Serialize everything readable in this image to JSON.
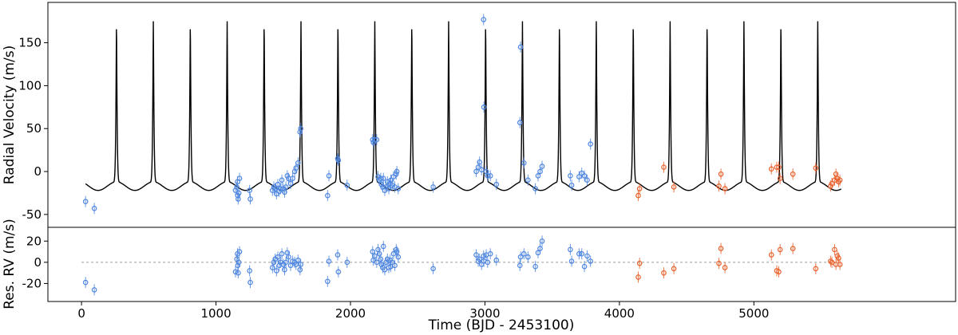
{
  "chart_data": [
    {
      "type": "line",
      "panel": "top",
      "ylabel": "Radial Velocity (m/s)",
      "xlim": [
        -250,
        6500
      ],
      "ylim": [
        -65,
        197
      ],
      "yticks": [
        -50,
        0,
        50,
        100,
        150
      ],
      "model": {
        "period": 274.5,
        "peak_times": [
          260,
          534,
          809,
          1083,
          1358,
          1632,
          1907,
          2181,
          2456,
          2730,
          3005,
          3279,
          3554,
          3828,
          4103,
          4377,
          4652,
          4926,
          5201,
          5475
        ],
        "peak_value": 175,
        "trough_value": -17,
        "x_range": [
          30,
          5650
        ]
      },
      "series": [
        {
          "instrument_color": "#4f87e0",
          "points": [
            [
              30,
              -35
            ],
            [
              95,
              -43
            ],
            [
              1145,
              -22
            ],
            [
              1155,
              -18
            ],
            [
              1160,
              -12
            ],
            [
              1162,
              -28
            ],
            [
              1165,
              -32
            ],
            [
              1170,
              -25
            ],
            [
              1175,
              -8
            ],
            [
              1250,
              -22
            ],
            [
              1255,
              -32
            ],
            [
              1420,
              -22
            ],
            [
              1430,
              -18
            ],
            [
              1440,
              -20
            ],
            [
              1450,
              -26
            ],
            [
              1460,
              -15
            ],
            [
              1470,
              -23
            ],
            [
              1480,
              -20
            ],
            [
              1490,
              -10
            ],
            [
              1500,
              -20
            ],
            [
              1510,
              -24
            ],
            [
              1520,
              -18
            ],
            [
              1530,
              -5
            ],
            [
              1540,
              -8
            ],
            [
              1555,
              -14
            ],
            [
              1570,
              -8
            ],
            [
              1585,
              0
            ],
            [
              1595,
              4
            ],
            [
              1610,
              10
            ],
            [
              1625,
              46
            ],
            [
              1630,
              50
            ],
            [
              1830,
              -28
            ],
            [
              1840,
              -5
            ],
            [
              1905,
              15
            ],
            [
              1910,
              13
            ],
            [
              1975,
              -16
            ],
            [
              2165,
              37
            ],
            [
              2170,
              34
            ],
            [
              2180,
              37
            ],
            [
              2195,
              37
            ],
            [
              2205,
              -6
            ],
            [
              2215,
              -10
            ],
            [
              2225,
              -8
            ],
            [
              2230,
              -15
            ],
            [
              2240,
              -18
            ],
            [
              2245,
              -8
            ],
            [
              2255,
              -22
            ],
            [
              2265,
              -18
            ],
            [
              2275,
              -12
            ],
            [
              2285,
              -20
            ],
            [
              2295,
              -14
            ],
            [
              2300,
              -10
            ],
            [
              2310,
              -16
            ],
            [
              2320,
              -6
            ],
            [
              2330,
              -18
            ],
            [
              2340,
              -3
            ],
            [
              2345,
              0
            ],
            [
              2355,
              -20
            ],
            [
              2615,
              -18
            ],
            [
              2935,
              0
            ],
            [
              2950,
              5
            ],
            [
              2960,
              11
            ],
            [
              2975,
              2
            ],
            [
              2990,
              177
            ],
            [
              2992,
              75
            ],
            [
              3010,
              0
            ],
            [
              3020,
              -5
            ],
            [
              3040,
              -5
            ],
            [
              3085,
              -15
            ],
            [
              3260,
              57
            ],
            [
              3265,
              145
            ],
            [
              3290,
              10
            ],
            [
              3320,
              -10
            ],
            [
              3375,
              -20
            ],
            [
              3395,
              -5
            ],
            [
              3410,
              0
            ],
            [
              3425,
              6
            ],
            [
              3635,
              -5
            ],
            [
              3645,
              -16
            ],
            [
              3700,
              -6
            ],
            [
              3720,
              -2
            ],
            [
              3740,
              -5
            ],
            [
              3760,
              -10
            ],
            [
              3785,
              32
            ]
          ]
        },
        {
          "instrument_color": "#e8622d",
          "points": [
            [
              4140,
              -28
            ],
            [
              4150,
              -20
            ],
            [
              4330,
              5
            ],
            [
              4405,
              -18
            ],
            [
              4740,
              -17
            ],
            [
              4755,
              -3
            ],
            [
              4785,
              -20
            ],
            [
              5130,
              3
            ],
            [
              5170,
              5
            ],
            [
              5185,
              5
            ],
            [
              5195,
              -8
            ],
            [
              5290,
              -3
            ],
            [
              5460,
              4
            ],
            [
              5570,
              -17
            ],
            [
              5580,
              -14
            ],
            [
              5600,
              -10
            ],
            [
              5610,
              -3
            ],
            [
              5620,
              -8
            ],
            [
              5630,
              -12
            ],
            [
              5640,
              -10
            ]
          ]
        }
      ]
    },
    {
      "type": "scatter",
      "panel": "bottom",
      "xlabel": "Time (BJD - 2453100)",
      "ylabel": "Res. RV (m/s)",
      "xlim": [
        -250,
        6500
      ],
      "ylim": [
        -37,
        33
      ],
      "xticks": [
        0,
        1000,
        2000,
        3000,
        4000,
        5000
      ],
      "yticks": [
        -20,
        0,
        20
      ],
      "zero_line": true,
      "series": [
        {
          "instrument_color": "#4f87e0",
          "points": [
            [
              30,
              -19
            ],
            [
              95,
              -26
            ],
            [
              1145,
              -9
            ],
            [
              1155,
              3
            ],
            [
              1160,
              8
            ],
            [
              1162,
              -3
            ],
            [
              1165,
              -10
            ],
            [
              1170,
              0
            ],
            [
              1175,
              10
            ],
            [
              1250,
              -8
            ],
            [
              1255,
              -19
            ],
            [
              1420,
              -5
            ],
            [
              1430,
              0
            ],
            [
              1440,
              3
            ],
            [
              1450,
              -8
            ],
            [
              1460,
              5
            ],
            [
              1470,
              -3
            ],
            [
              1480,
              0
            ],
            [
              1490,
              8
            ],
            [
              1500,
              -2
            ],
            [
              1510,
              -7
            ],
            [
              1520,
              0
            ],
            [
              1530,
              9
            ],
            [
              1540,
              5
            ],
            [
              1555,
              -3
            ],
            [
              1570,
              1
            ],
            [
              1585,
              0
            ],
            [
              1595,
              -2
            ],
            [
              1610,
              2
            ],
            [
              1625,
              -7
            ],
            [
              1630,
              -2
            ],
            [
              1830,
              -18
            ],
            [
              1840,
              1
            ],
            [
              1905,
              7
            ],
            [
              1910,
              -9
            ],
            [
              1975,
              0
            ],
            [
              2165,
              10
            ],
            [
              2170,
              2
            ],
            [
              2180,
              6
            ],
            [
              2195,
              0
            ],
            [
              2205,
              12
            ],
            [
              2215,
              8
            ],
            [
              2225,
              3
            ],
            [
              2230,
              -2
            ],
            [
              2240,
              -5
            ],
            [
              2245,
              15
            ],
            [
              2255,
              -7
            ],
            [
              2265,
              0
            ],
            [
              2275,
              3
            ],
            [
              2285,
              -5
            ],
            [
              2295,
              2
            ],
            [
              2300,
              -4
            ],
            [
              2310,
              0
            ],
            [
              2320,
              8
            ],
            [
              2330,
              -3
            ],
            [
              2340,
              12
            ],
            [
              2345,
              10
            ],
            [
              2355,
              5
            ],
            [
              2615,
              -6
            ],
            [
              2935,
              7
            ],
            [
              2950,
              1
            ],
            [
              2960,
              3
            ],
            [
              2975,
              -2
            ],
            [
              2990,
              6
            ],
            [
              2992,
              1
            ],
            [
              3010,
              7
            ],
            [
              3020,
              0
            ],
            [
              3040,
              8
            ],
            [
              3085,
              2
            ],
            [
              3260,
              -3
            ],
            [
              3265,
              5
            ],
            [
              3290,
              8
            ],
            [
              3320,
              5
            ],
            [
              3375,
              -4
            ],
            [
              3395,
              9
            ],
            [
              3410,
              13
            ],
            [
              3425,
              20
            ],
            [
              3635,
              12
            ],
            [
              3645,
              1
            ],
            [
              3700,
              8
            ],
            [
              3720,
              8
            ],
            [
              3740,
              -4
            ],
            [
              3760,
              6
            ],
            [
              3785,
              1
            ]
          ]
        },
        {
          "instrument_color": "#e8622d",
          "points": [
            [
              4140,
              -14
            ],
            [
              4150,
              -1
            ],
            [
              4330,
              -10
            ],
            [
              4405,
              -6
            ],
            [
              4740,
              -1
            ],
            [
              4755,
              13
            ],
            [
              4785,
              -5
            ],
            [
              5130,
              7
            ],
            [
              5170,
              -8
            ],
            [
              5185,
              -9
            ],
            [
              5195,
              12
            ],
            [
              5290,
              13
            ],
            [
              5460,
              -6
            ],
            [
              5570,
              1
            ],
            [
              5580,
              0
            ],
            [
              5600,
              12
            ],
            [
              5610,
              -2
            ],
            [
              5620,
              6
            ],
            [
              5630,
              4
            ],
            [
              5640,
              -2
            ]
          ]
        }
      ]
    }
  ]
}
